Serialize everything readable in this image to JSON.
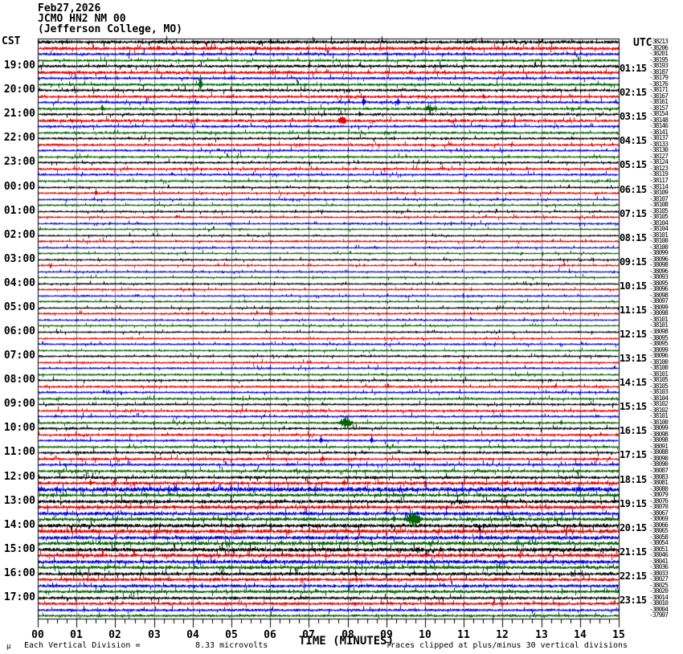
{
  "title": {
    "date": "Feb27,2026",
    "station": "JCMO HN2 NM 00",
    "location": "(Jefferson College, MO)"
  },
  "axes": {
    "left_zone": "CST",
    "right_zone": "UTC",
    "x_label": "TIME (MINUTES)",
    "minute_labels": [
      "00",
      "01",
      "02",
      "03",
      "04",
      "05",
      "06",
      "07",
      "08",
      "09",
      "10",
      "11",
      "12",
      "13",
      "14",
      "15"
    ]
  },
  "footer": {
    "mu_mark": "μ",
    "division_text": "Each Vertical Division =",
    "division_value": "8.33 microvolts",
    "clip_note": "Traces clipped at plus/minus 30 vertical divisions"
  },
  "left_times": [
    "19:00",
    "20:00",
    "21:00",
    "22:00",
    "23:00",
    "00:00",
    "01:00",
    "02:00",
    "03:00",
    "04:00",
    "05:00",
    "06:00",
    "07:00",
    "08:00",
    "09:00",
    "10:00",
    "11:00",
    "12:00",
    "13:00",
    "14:00",
    "15:00",
    "16:00",
    "17:00"
  ],
  "right_times": [
    "01:15",
    "02:15",
    "03:15",
    "04:15",
    "05:15",
    "06:15",
    "07:15",
    "08:15",
    "09:15",
    "10:15",
    "11:15",
    "12:15",
    "13:15",
    "14:15",
    "15:15",
    "16:15",
    "17:15",
    "18:15",
    "19:15",
    "20:15",
    "21:15",
    "22:15",
    "23:15"
  ],
  "chart_data": {
    "type": "line",
    "subtype": "helicorder",
    "title": "JCMO HN2 NM 00 (Jefferson College, MO) Feb27,2026",
    "xlabel": "TIME (MINUTES)",
    "x_range": [
      0,
      15
    ],
    "minutes_per_row": 15,
    "rows": 96,
    "first_hour_label_row": 4,
    "hour_label_step": 4,
    "grid": "vertical-minute-lines",
    "grid_color": "#8a8a8a",
    "row_colors": [
      "#000000",
      "#e60000",
      "#0000e6",
      "#006400"
    ],
    "trace_offsets": [
      -38213,
      -38206,
      -38201,
      -38195,
      -38193,
      -38187,
      -38179,
      -38176,
      -38171,
      -38167,
      -38161,
      -38157,
      -38154,
      -38148,
      -38146,
      -38141,
      -38137,
      -38133,
      -38130,
      -38127,
      -38124,
      -38123,
      -38119,
      -38117,
      -38114,
      -38109,
      -38107,
      -38108,
      -38105,
      -38105,
      -38104,
      -38104,
      -38101,
      -38100,
      -38100,
      -38099,
      -38096,
      -38098,
      -38096,
      -38093,
      -38095,
      -38096,
      -38098,
      -38097,
      -38099,
      -38098,
      -38101,
      -38101,
      -38098,
      -38095,
      -38095,
      -38099,
      -38096,
      -38100,
      -38100,
      -38101,
      -38105,
      -38105,
      -38103,
      -38104,
      -38102,
      -38102,
      -38101,
      -38100,
      -38099,
      -38098,
      -38098,
      -38091,
      -38088,
      -38090,
      -38090,
      -38087,
      -38083,
      -38081,
      -38080,
      -38079,
      -38076,
      -38070,
      -38067,
      -38069,
      -38066,
      -38065,
      -38058,
      -38054,
      -38051,
      -38046,
      -38041,
      -38036,
      -38033,
      -38027,
      -38025,
      -38020,
      -38014,
      -38010,
      -38004,
      -37997
    ],
    "row_amplitudes": [
      1.8,
      1.9,
      1.5,
      1.4,
      1.6,
      1.7,
      1.4,
      1.5,
      1.5,
      1.5,
      1.4,
      1.4,
      1.4,
      1.6,
      1.3,
      1.3,
      1.3,
      1.3,
      1.2,
      1.2,
      1.2,
      1.3,
      1.2,
      1.2,
      1.1,
      1.2,
      1.1,
      1.1,
      1.1,
      1.1,
      1.1,
      1.0,
      1.0,
      1.1,
      1.0,
      1.0,
      1.0,
      1.0,
      1.0,
      1.0,
      1.0,
      1.0,
      1.0,
      1.0,
      1.0,
      1.1,
      1.0,
      1.0,
      1.0,
      1.0,
      1.1,
      1.0,
      1.1,
      1.1,
      1.1,
      1.1,
      1.2,
      1.2,
      1.2,
      1.2,
      1.2,
      1.3,
      1.2,
      1.3,
      1.3,
      1.3,
      1.3,
      1.3,
      1.4,
      1.4,
      1.4,
      1.5,
      1.6,
      1.8,
      2.6,
      1.8,
      1.9,
      2.0,
      1.9,
      2.0,
      2.1,
      2.2,
      2.0,
      2.1,
      2.2,
      2.0,
      2.0,
      1.9,
      1.8,
      1.8,
      1.7,
      1.7,
      1.6,
      1.6,
      1.5,
      1.4
    ],
    "events": [
      {
        "row": 1,
        "minute": 3.1,
        "amp": 4
      },
      {
        "row": 5,
        "minute": 9.6,
        "amp": 4
      },
      {
        "row": 7,
        "minute": 4.2,
        "amp": 13
      },
      {
        "row": 9,
        "minute": 11.5,
        "amp": 4
      },
      {
        "row": 10,
        "minute": 8.4,
        "amp": 8
      },
      {
        "row": 10,
        "minute": 9.3,
        "amp": 6
      },
      {
        "row": 11,
        "minute": 1.66,
        "amp": 5
      },
      {
        "row": 11,
        "minute": 10.1,
        "amp": 6,
        "w": 0.3
      },
      {
        "row": 12,
        "minute": 8.3,
        "amp": 4
      },
      {
        "row": 13,
        "minute": 7.85,
        "amp": 7,
        "w": 0.25
      },
      {
        "row": 13,
        "minute": 4.1,
        "amp": 4
      },
      {
        "row": 25,
        "minute": 1.5,
        "amp": 5
      },
      {
        "row": 63,
        "minute": 7.95,
        "amp": 9,
        "w": 0.4
      },
      {
        "row": 63,
        "minute": 13.5,
        "amp": 4
      },
      {
        "row": 66,
        "minute": 7.3,
        "amp": 6
      },
      {
        "row": 66,
        "minute": 8.6,
        "amp": 6
      },
      {
        "row": 69,
        "minute": 7.35,
        "amp": 5
      },
      {
        "row": 73,
        "minute": 1.35,
        "amp": 5
      },
      {
        "row": 73,
        "minute": 1.97,
        "amp": 5
      },
      {
        "row": 73,
        "minute": 7.9,
        "amp": 5
      },
      {
        "row": 74,
        "minute": 3.53,
        "amp": 6
      },
      {
        "row": 79,
        "minute": 9.2,
        "amp": 6
      },
      {
        "row": 79,
        "minute": 9.7,
        "amp": 12,
        "w": 0.45
      },
      {
        "row": 88,
        "minute": 8.2,
        "amp": 5
      }
    ]
  }
}
